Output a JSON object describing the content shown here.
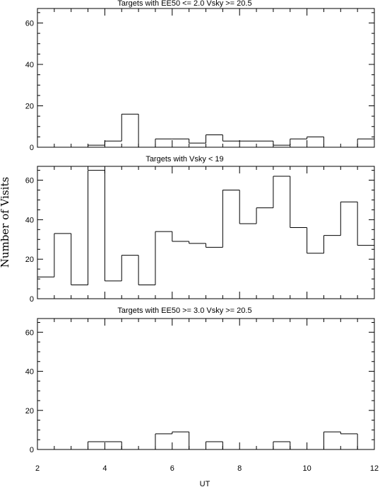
{
  "figure": {
    "ylabel": "Number of Visits",
    "xlabel": "UT"
  },
  "chart_data": [
    {
      "type": "bar",
      "title": "Targets with EE50 <= 2.0 Vsky >= 20.5",
      "xlabel": "UT",
      "ylabel": "Number of Visits",
      "xlim": [
        2,
        12
      ],
      "ylim": [
        0,
        67
      ],
      "x_ticks": [
        2,
        4,
        6,
        8,
        10,
        12
      ],
      "y_ticks": [
        0,
        20,
        40,
        60
      ],
      "bin_edges": [
        2.0,
        2.5,
        3.0,
        3.5,
        4.0,
        4.5,
        5.0,
        5.5,
        6.0,
        6.5,
        7.0,
        7.5,
        8.0,
        8.5,
        9.0,
        9.5,
        10.0,
        10.5,
        11.0,
        11.5,
        12.0
      ],
      "values": [
        0,
        0,
        0,
        1,
        3,
        16,
        0,
        4,
        4,
        2,
        6,
        3,
        3,
        3,
        1,
        4,
        5,
        0,
        0,
        4
      ]
    },
    {
      "type": "bar",
      "title": "Targets with Vsky < 19",
      "xlabel": "UT",
      "ylabel": "Number of Visits",
      "xlim": [
        2,
        12
      ],
      "ylim": [
        0,
        67
      ],
      "x_ticks": [
        2,
        4,
        6,
        8,
        10,
        12
      ],
      "y_ticks": [
        0,
        20,
        40,
        60
      ],
      "bin_edges": [
        2.0,
        2.5,
        3.0,
        3.5,
        4.0,
        4.5,
        5.0,
        5.5,
        6.0,
        6.5,
        7.0,
        7.5,
        8.0,
        8.5,
        9.0,
        9.5,
        10.0,
        10.5,
        11.0,
        11.5,
        12.0
      ],
      "values": [
        11,
        33,
        7,
        65,
        9,
        22,
        7,
        34,
        29,
        28,
        26,
        55,
        38,
        46,
        62,
        36,
        23,
        32,
        49,
        27
      ]
    },
    {
      "type": "bar",
      "title": "Targets with EE50 >= 3.0 Vsky >= 20.5",
      "xlabel": "UT",
      "ylabel": "Number of Visits",
      "xlim": [
        2,
        12
      ],
      "ylim": [
        0,
        67
      ],
      "x_ticks": [
        2,
        4,
        6,
        8,
        10,
        12
      ],
      "y_ticks": [
        0,
        20,
        40,
        60
      ],
      "bin_edges": [
        2.0,
        2.5,
        3.0,
        3.5,
        4.0,
        4.5,
        5.0,
        5.5,
        6.0,
        6.5,
        7.0,
        7.5,
        8.0,
        8.5,
        9.0,
        9.5,
        10.0,
        10.5,
        11.0,
        11.5,
        12.0
      ],
      "values": [
        0,
        0,
        0,
        4,
        4,
        0,
        0,
        8,
        9,
        0,
        4,
        0,
        0,
        0,
        4,
        0,
        0,
        9,
        8,
        0
      ]
    }
  ]
}
